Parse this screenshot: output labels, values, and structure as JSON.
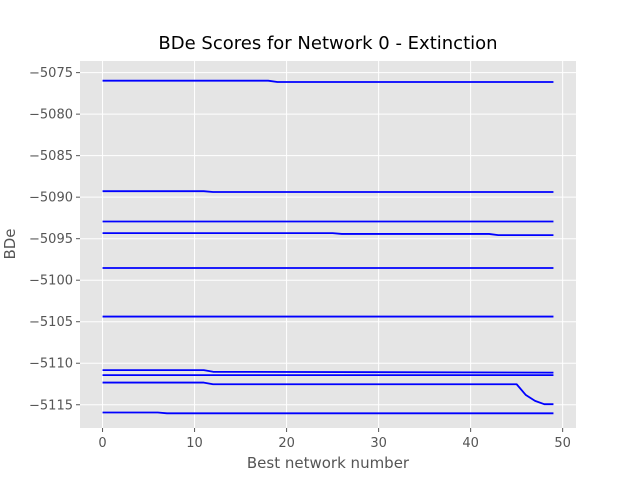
{
  "chart_data": {
    "type": "line",
    "title": "BDe Scores for Network 0 - Extinction",
    "xlabel": "Best network number",
    "ylabel": "BDe",
    "xlim": [
      -2.45,
      51.45
    ],
    "ylim": [
      -5117.8,
      -5073.6
    ],
    "xticks": [
      0,
      10,
      20,
      30,
      40,
      50
    ],
    "yticks": [
      -5075,
      -5080,
      -5085,
      -5090,
      -5095,
      -5100,
      -5105,
      -5110,
      -5115
    ],
    "xtick_labels": [
      "0",
      "10",
      "20",
      "30",
      "40",
      "50"
    ],
    "ytick_labels": [
      "−5075",
      "−5080",
      "−5085",
      "−5090",
      "−5095",
      "−5100",
      "−5105",
      "−5110",
      "−5115"
    ],
    "grid": true,
    "legend": "none",
    "background_color": "#e5e5e5",
    "grid_color": "#ffffff",
    "line_color": "#0000ff",
    "series": [
      {
        "x": [
          0,
          18,
          19,
          49
        ],
        "y": [
          -5075.97,
          -5075.97,
          -5076.13,
          -5076.13
        ]
      },
      {
        "x": [
          0,
          11,
          12,
          49
        ],
        "y": [
          -5089.28,
          -5089.28,
          -5089.38,
          -5089.38
        ]
      },
      {
        "x": [
          0,
          49
        ],
        "y": [
          -5092.93,
          -5092.93
        ]
      },
      {
        "x": [
          0,
          25,
          26,
          42,
          43,
          49
        ],
        "y": [
          -5094.33,
          -5094.33,
          -5094.43,
          -5094.43,
          -5094.57,
          -5094.57
        ]
      },
      {
        "x": [
          0,
          49
        ],
        "y": [
          -5098.53,
          -5098.53
        ]
      },
      {
        "x": [
          0,
          49
        ],
        "y": [
          -5104.38,
          -5104.38
        ]
      },
      {
        "x": [
          0,
          11,
          12,
          49
        ],
        "y": [
          -5110.83,
          -5110.83,
          -5111.03,
          -5111.13
        ]
      },
      {
        "x": [
          0,
          49
        ],
        "y": [
          -5111.43,
          -5111.43
        ]
      },
      {
        "x": [
          0,
          11,
          12,
          45,
          46,
          47,
          48,
          49
        ],
        "y": [
          -5112.33,
          -5112.33,
          -5112.53,
          -5112.53,
          -5113.83,
          -5114.53,
          -5114.93,
          -5114.93
        ]
      },
      {
        "x": [
          0,
          6,
          7,
          49
        ],
        "y": [
          -5115.93,
          -5115.93,
          -5116.03,
          -5116.03
        ]
      }
    ]
  }
}
